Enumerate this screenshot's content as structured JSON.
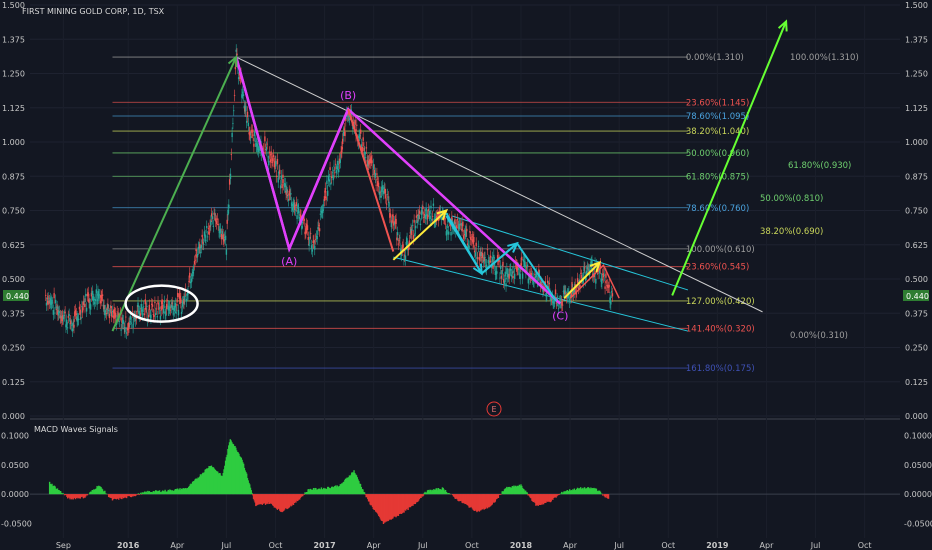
{
  "header": {
    "title": "FIRST MINING GOLD CORP, 1D, TSX"
  },
  "macd_panel": {
    "title": "MACD Waves Signals"
  },
  "price_badge": {
    "left": "0.440",
    "right": "0.440"
  },
  "event_marker": "E",
  "colors": {
    "background": "#131722",
    "up": "#26a69a",
    "down": "#ef5350"
  },
  "chart_data": [
    {
      "type": "line",
      "title": "FIRST MINING GOLD CORP, 1D, TSX",
      "ylim": [
        0,
        1.5
      ],
      "y_ticks": [
        "0.000",
        "0.125",
        "0.250",
        "0.375",
        "0.500",
        "0.625",
        "0.750",
        "0.875",
        "1.000",
        "1.125",
        "1.250",
        "1.375",
        "1.500"
      ],
      "y_tick_values": [
        0,
        0.125,
        0.25,
        0.375,
        0.5,
        0.625,
        0.75,
        0.875,
        1.0,
        1.125,
        1.25,
        1.375,
        1.5
      ],
      "x_ticks": [
        "Sep",
        "2016",
        "Apr",
        "Jul",
        "Oct",
        "2017",
        "Apr",
        "Jul",
        "Oct",
        "2018",
        "Apr",
        "Jul",
        "Oct",
        "2019",
        "Apr",
        "Jul",
        "Oct"
      ],
      "price_series": {
        "t": [
          2015.58,
          2015.65,
          2015.72,
          2015.78,
          2015.85,
          2015.92,
          2016.0,
          2016.05,
          2016.12,
          2016.2,
          2016.28,
          2016.33,
          2016.4,
          2016.45,
          2016.5,
          2016.55,
          2016.62,
          2016.7,
          2016.78,
          2016.82,
          2016.88,
          2016.95,
          2017.02,
          2017.08,
          2017.12,
          2017.18,
          2017.25,
          2017.32,
          2017.4,
          2017.48,
          2017.55,
          2017.62,
          2017.7,
          2017.78,
          2017.85,
          2017.92,
          2018.0,
          2018.05,
          2018.12,
          2018.18,
          2018.22,
          2018.28,
          2018.35,
          2018.42,
          2018.47
        ],
        "close": [
          0.44,
          0.38,
          0.33,
          0.42,
          0.45,
          0.36,
          0.33,
          0.39,
          0.38,
          0.4,
          0.41,
          0.55,
          0.68,
          0.72,
          0.63,
          1.31,
          1.02,
          0.98,
          0.86,
          0.81,
          0.72,
          0.61,
          0.86,
          0.94,
          1.12,
          1.01,
          0.89,
          0.78,
          0.59,
          0.72,
          0.75,
          0.7,
          0.68,
          0.6,
          0.57,
          0.51,
          0.55,
          0.52,
          0.48,
          0.41,
          0.43,
          0.47,
          0.55,
          0.5,
          0.42
        ]
      },
      "fib_levels_right": [
        {
          "label": "0.00%(1.310)",
          "value": 1.31,
          "color": "#9e9e9e"
        },
        {
          "label": "23.60%(1.145)",
          "value": 1.145,
          "color": "#ef5350"
        },
        {
          "label": "78.60%(1.095)",
          "value": 1.095,
          "color": "#4aa3df"
        },
        {
          "label": "38.20%(1.040)",
          "value": 1.04,
          "color": "#c9d65a"
        },
        {
          "label": "50.00%(0.960)",
          "value": 0.96,
          "color": "#6fcf6f"
        },
        {
          "label": "61.80%(0.875)",
          "value": 0.875,
          "color": "#6fcf6f"
        },
        {
          "label": "78.60%(0.760)",
          "value": 0.76,
          "color": "#4aa3df"
        },
        {
          "label": "100.00%(0.610)",
          "value": 0.61,
          "color": "#9e9e9e"
        },
        {
          "label": "23.60%(0.545)",
          "value": 0.545,
          "color": "#ef5350"
        },
        {
          "label": "127.00%(0.420)",
          "value": 0.42,
          "color": "#c9d65a"
        },
        {
          "label": "141.40%(0.320)",
          "value": 0.32,
          "color": "#ef5350"
        },
        {
          "label": "161.80%(0.175)",
          "value": 0.175,
          "color": "#3f51b5"
        }
      ],
      "fib_levels_extra": [
        {
          "label": "100.00%(1.310)",
          "value": 1.31,
          "color": "#9e9e9e"
        },
        {
          "label": "61.80%(0.930)",
          "value": 0.93,
          "color": "#6fcf6f"
        },
        {
          "label": "50.00%(0.810)",
          "value": 0.81,
          "color": "#6fcf6f"
        },
        {
          "label": "38.20%(0.690)",
          "value": 0.69,
          "color": "#c9d65a"
        },
        {
          "label": "0.00%(0.310)",
          "value": 0.31,
          "color": "#9e9e9e"
        }
      ],
      "annotations": [
        {
          "label": "(A)",
          "t": 2016.82,
          "value": 0.61
        },
        {
          "label": "(B)",
          "t": 2017.12,
          "value": 1.12
        },
        {
          "label": "(C)",
          "t": 2018.2,
          "value": 0.41
        }
      ]
    },
    {
      "type": "bar",
      "title": "MACD Waves Signals",
      "ylim": [
        -0.075,
        0.12
      ],
      "y_ticks": [
        "0.1000",
        "0.0500",
        "0.0000",
        "-0.0500"
      ],
      "y_tick_values": [
        0.1,
        0.05,
        0,
        -0.05
      ],
      "t": [
        2015.6,
        2015.7,
        2015.78,
        2015.85,
        2015.92,
        2016.0,
        2016.1,
        2016.2,
        2016.3,
        2016.42,
        2016.48,
        2016.52,
        2016.58,
        2016.65,
        2016.72,
        2016.78,
        2016.85,
        2016.92,
        2017.0,
        2017.08,
        2017.15,
        2017.22,
        2017.3,
        2017.38,
        2017.45,
        2017.52,
        2017.6,
        2017.68,
        2017.78,
        2017.85,
        2017.92,
        2018.0,
        2018.08,
        2018.15,
        2018.22,
        2018.3,
        2018.38,
        2018.45
      ],
      "values": [
        0.02,
        -0.008,
        -0.005,
        0.015,
        -0.01,
        -0.005,
        0.004,
        0.006,
        0.01,
        0.05,
        0.03,
        0.095,
        0.06,
        -0.02,
        -0.015,
        -0.03,
        -0.015,
        0.008,
        0.01,
        0.015,
        0.04,
        -0.01,
        -0.05,
        -0.035,
        -0.02,
        0.005,
        0.01,
        -0.01,
        -0.03,
        -0.02,
        0.01,
        0.015,
        -0.02,
        -0.012,
        0.005,
        0.01,
        0.01,
        -0.01
      ]
    }
  ]
}
